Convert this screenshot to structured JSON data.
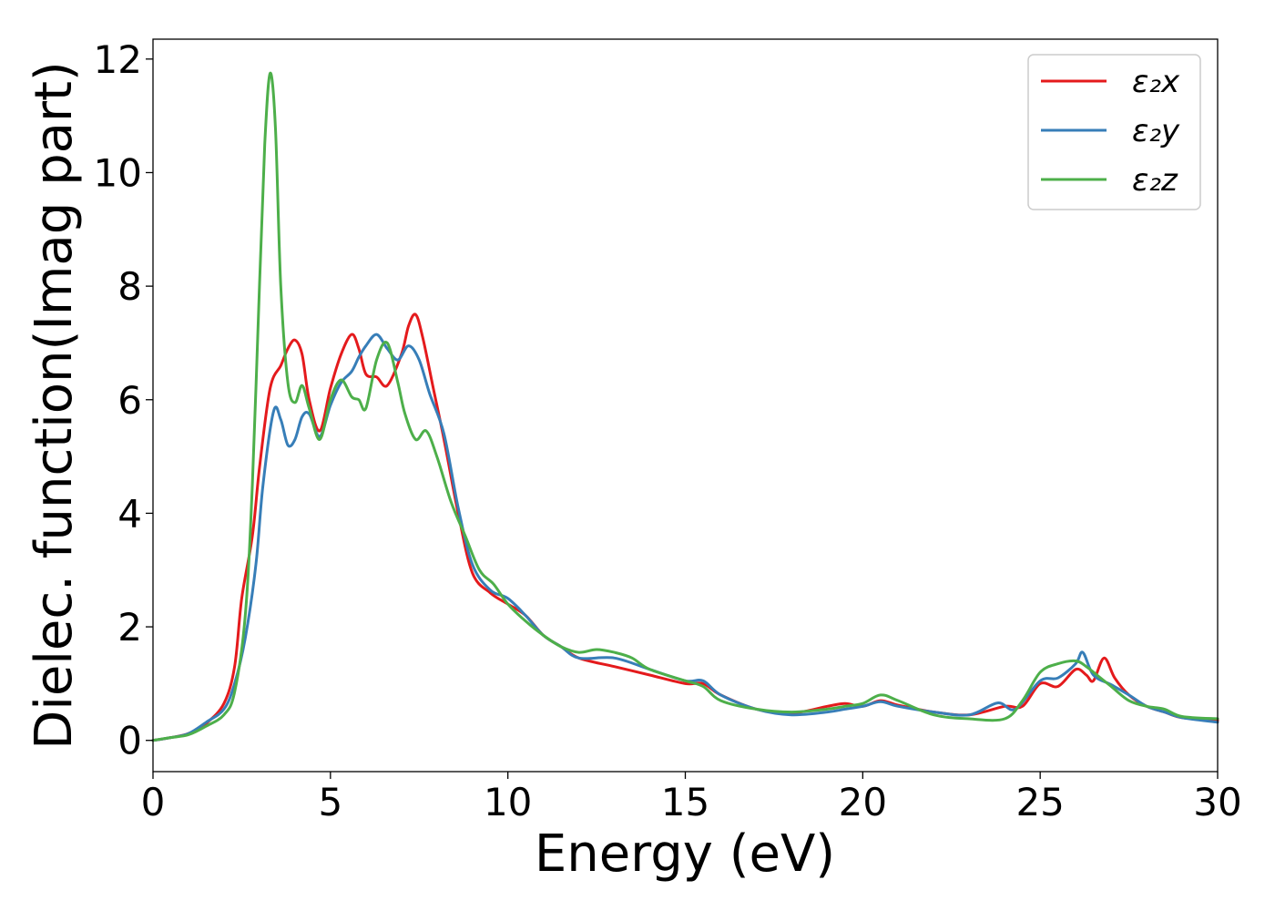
{
  "chart_data": {
    "type": "line",
    "title": "",
    "xlabel": "Energy (eV)",
    "ylabel": "Dielec. function(Imag part)",
    "xlim": [
      0,
      30
    ],
    "ylim": [
      -0.55,
      12.35
    ],
    "xticks": [
      0,
      5,
      10,
      15,
      20,
      25,
      30
    ],
    "yticks": [
      0,
      2,
      4,
      6,
      8,
      10,
      12
    ],
    "grid": false,
    "legend_position": "top-right",
    "series": [
      {
        "name": "ε₂x",
        "color": "#e41a1c",
        "x": [
          0,
          0.5,
          1,
          1.5,
          2,
          2.3,
          2.5,
          2.8,
          3,
          3.3,
          3.6,
          3.8,
          4,
          4.2,
          4.4,
          4.7,
          5,
          5.3,
          5.6,
          5.8,
          6,
          6.3,
          6.6,
          7,
          7.2,
          7.4,
          7.6,
          7.9,
          8.2,
          8.6,
          9,
          9.5,
          10,
          10.5,
          11,
          11.5,
          12,
          13,
          14,
          15,
          15.5,
          16,
          17,
          18,
          19,
          19.5,
          20,
          20.5,
          21,
          22,
          23,
          24,
          24.5,
          25,
          25.5,
          26,
          26.3,
          26.5,
          26.8,
          27.1,
          27.5,
          28,
          28.5,
          29,
          30
        ],
        "y": [
          0,
          0.05,
          0.12,
          0.3,
          0.65,
          1.3,
          2.5,
          3.6,
          4.8,
          6.2,
          6.6,
          6.9,
          7.05,
          6.8,
          6.0,
          5.45,
          6.2,
          6.8,
          7.15,
          6.9,
          6.45,
          6.4,
          6.25,
          6.8,
          7.3,
          7.5,
          7.1,
          6.2,
          5.3,
          4.0,
          2.95,
          2.6,
          2.4,
          2.2,
          1.85,
          1.65,
          1.45,
          1.3,
          1.15,
          1.0,
          1.0,
          0.8,
          0.55,
          0.48,
          0.6,
          0.65,
          0.6,
          0.7,
          0.62,
          0.5,
          0.45,
          0.6,
          0.6,
          1.0,
          0.95,
          1.25,
          1.15,
          1.05,
          1.45,
          1.1,
          0.8,
          0.6,
          0.5,
          0.4,
          0.35
        ]
      },
      {
        "name": "ε₂y",
        "color": "#377eb8",
        "x": [
          0,
          0.5,
          1,
          1.5,
          2,
          2.3,
          2.6,
          2.9,
          3.1,
          3.4,
          3.6,
          3.8,
          4,
          4.2,
          4.4,
          4.7,
          5,
          5.3,
          5.6,
          5.8,
          6,
          6.3,
          6.6,
          6.9,
          7.2,
          7.5,
          7.8,
          8.2,
          8.6,
          9,
          9.5,
          10,
          10.5,
          11,
          11.5,
          12,
          13,
          14,
          15,
          15.5,
          16,
          17,
          18,
          19,
          19.5,
          20,
          20.5,
          21,
          22,
          23,
          23.8,
          24.3,
          25,
          25.5,
          26,
          26.2,
          26.5,
          27,
          27.5,
          28,
          28.5,
          29,
          30
        ],
        "y": [
          0,
          0.05,
          0.12,
          0.32,
          0.55,
          1.0,
          1.8,
          3.1,
          4.5,
          5.8,
          5.65,
          5.2,
          5.3,
          5.7,
          5.75,
          5.35,
          5.9,
          6.3,
          6.5,
          6.75,
          6.95,
          7.15,
          6.9,
          6.7,
          6.95,
          6.7,
          6.1,
          5.4,
          4.1,
          3.1,
          2.65,
          2.5,
          2.2,
          1.85,
          1.65,
          1.45,
          1.45,
          1.25,
          1.05,
          1.05,
          0.8,
          0.55,
          0.45,
          0.5,
          0.55,
          0.6,
          0.68,
          0.6,
          0.5,
          0.45,
          0.66,
          0.55,
          1.05,
          1.1,
          1.35,
          1.55,
          1.15,
          0.98,
          0.8,
          0.6,
          0.5,
          0.4,
          0.32
        ]
      },
      {
        "name": "ε₂z",
        "color": "#4daf4a",
        "x": [
          0,
          0.5,
          1,
          1.5,
          2,
          2.3,
          2.6,
          2.8,
          3,
          3.15,
          3.3,
          3.45,
          3.6,
          3.8,
          4,
          4.2,
          4.4,
          4.7,
          5,
          5.3,
          5.6,
          5.8,
          6,
          6.3,
          6.6,
          6.9,
          7.1,
          7.4,
          7.7,
          8,
          8.4,
          8.8,
          9.2,
          9.6,
          10,
          10.5,
          11,
          11.5,
          12,
          12.5,
          13,
          13.5,
          14,
          15,
          15.5,
          16,
          17,
          18,
          19,
          19.5,
          20,
          20.5,
          21,
          22,
          23,
          24,
          24.5,
          25,
          25.5,
          26,
          26.3,
          26.6,
          27,
          27.5,
          28,
          28.5,
          29,
          30
        ],
        "y": [
          0,
          0.05,
          0.1,
          0.25,
          0.45,
          0.85,
          2.2,
          4.5,
          8.0,
          10.5,
          11.75,
          10.8,
          8.0,
          6.3,
          5.95,
          6.25,
          5.85,
          5.3,
          6.0,
          6.35,
          6.05,
          6.0,
          5.85,
          6.7,
          7.0,
          6.3,
          5.75,
          5.3,
          5.45,
          5.0,
          4.2,
          3.6,
          3.0,
          2.75,
          2.4,
          2.1,
          1.85,
          1.65,
          1.55,
          1.6,
          1.55,
          1.45,
          1.25,
          1.05,
          0.95,
          0.7,
          0.55,
          0.5,
          0.55,
          0.6,
          0.65,
          0.8,
          0.7,
          0.45,
          0.38,
          0.38,
          0.7,
          1.2,
          1.35,
          1.4,
          1.3,
          1.15,
          0.95,
          0.7,
          0.6,
          0.55,
          0.42,
          0.38
        ]
      }
    ]
  }
}
